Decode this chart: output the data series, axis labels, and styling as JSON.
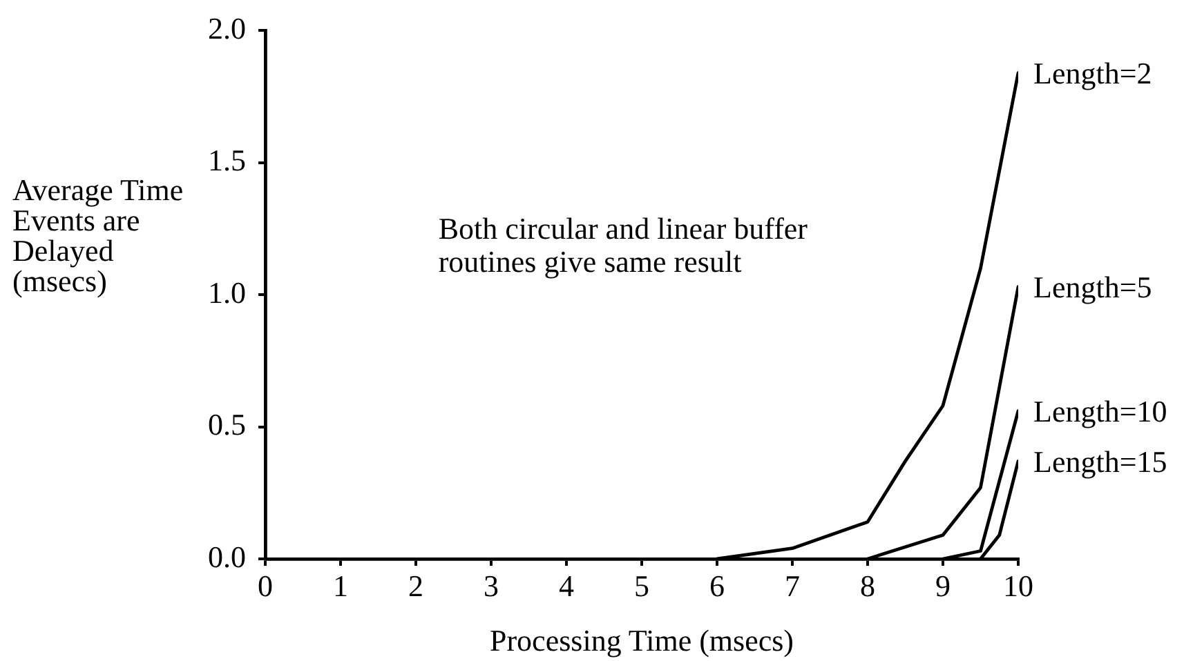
{
  "chart_data": {
    "type": "line",
    "xlabel": "Processing Time (msecs)",
    "ylabel": "Average Time Events are Delayed (msecs)",
    "annotations": [
      "Both circular and linear buffer routines give same result"
    ],
    "series": [
      {
        "name": "Length=2",
        "color": "#000000",
        "x": [
          6,
          7,
          8,
          8.5,
          9,
          9.5,
          10
        ],
        "values": [
          0,
          0.04,
          0.14,
          0.37,
          0.58,
          1.1,
          1.84
        ]
      },
      {
        "name": "Length=5",
        "color": "#000000",
        "x": [
          8,
          9,
          9.5,
          10
        ],
        "values": [
          0,
          0.09,
          0.27,
          1.03
        ]
      },
      {
        "name": "Length=10",
        "color": "#000000",
        "x": [
          9,
          9.5,
          10
        ],
        "values": [
          0,
          0.03,
          0.56
        ]
      },
      {
        "name": "Length=15",
        "color": "#000000",
        "x": [
          9.5,
          9.75,
          10
        ],
        "values": [
          0,
          0.09,
          0.37
        ]
      }
    ],
    "xlim": [
      0,
      10
    ],
    "xticks": [
      0,
      1,
      2,
      3,
      4,
      5,
      6,
      7,
      8,
      9,
      10
    ],
    "ylim": [
      0,
      2
    ],
    "yticks": [
      {
        "value": 0,
        "label": "0.0"
      },
      {
        "value": 0.5,
        "label": "0.5"
      },
      {
        "value": 1,
        "label": "1.0"
      },
      {
        "value": 1.5,
        "label": "1.5"
      },
      {
        "value": 2,
        "label": "2.0"
      }
    ],
    "marker": "none",
    "line_style": "solid"
  }
}
